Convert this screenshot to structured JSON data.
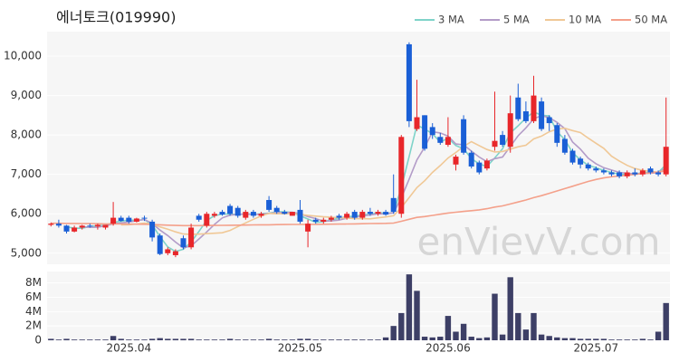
{
  "chart_data": [
    {
      "type": "candlestick",
      "title": "에너토크(019990)",
      "watermark": "enVievV.com",
      "up_color": "#e8262a",
      "down_color": "#1a5fd6",
      "grid": true,
      "legend": "upper right",
      "ylim": [
        4720,
        10620
      ],
      "yticks": [
        {
          "value": 5000,
          "label": "5,000"
        },
        {
          "value": 6000,
          "label": "6,000"
        },
        {
          "value": 7000,
          "label": "7,000"
        },
        {
          "value": 8000,
          "label": "8,000"
        },
        {
          "value": 9000,
          "label": "9,000"
        },
        {
          "value": 10000,
          "label": "10,000"
        }
      ],
      "open": [
        5720,
        5750,
        5700,
        5550,
        5650,
        5700,
        5680,
        5650,
        5750,
        5900,
        5900,
        5800,
        5900,
        5800,
        5450,
        5000,
        4950,
        5380,
        5150,
        5950,
        5700,
        5950,
        6050,
        6200,
        6150,
        5900,
        6050,
        5950,
        6350,
        6150,
        6050,
        5950,
        6100,
        5550,
        5850,
        5800,
        5850,
        5950,
        5900,
        6050,
        5900,
        6050,
        6000,
        6050,
        6400,
        6000,
        10300,
        8150,
        8500,
        8200,
        7950,
        7750,
        7250,
        8400,
        7550,
        7300,
        7150,
        7700,
        8000,
        7700,
        8950,
        8600,
        8350,
        8850,
        8450,
        8250,
        7900,
        7600,
        7400,
        7250,
        7150,
        7100,
        7050,
        7050,
        6950,
        7050,
        7000,
        7150,
        7050,
        7000
      ],
      "high": [
        5780,
        5850,
        5720,
        5700,
        5720,
        5750,
        5750,
        5720,
        6300,
        5950,
        5950,
        5900,
        5950,
        5850,
        5500,
        5150,
        5100,
        5450,
        5750,
        6000,
        6050,
        6050,
        6100,
        6250,
        6200,
        6100,
        6100,
        6050,
        6450,
        6200,
        6100,
        6050,
        6350,
        5850,
        5900,
        5900,
        5950,
        6000,
        6050,
        6100,
        6100,
        6150,
        6100,
        6100,
        7000,
        8000,
        10350,
        9400,
        8500,
        8300,
        8050,
        8450,
        7500,
        8500,
        7600,
        7350,
        7400,
        9100,
        8100,
        9000,
        9300,
        8850,
        9500,
        8950,
        8500,
        8300,
        8000,
        7650,
        7450,
        7300,
        7200,
        7150,
        7100,
        7100,
        7100,
        7150,
        7150,
        7200,
        7100,
        8950
      ],
      "low": [
        5680,
        5650,
        5500,
        5530,
        5600,
        5650,
        5600,
        5600,
        5700,
        5800,
        5750,
        5780,
        5820,
        5300,
        4950,
        4950,
        4900,
        5100,
        5100,
        5800,
        5650,
        5900,
        5950,
        5950,
        5900,
        5850,
        5900,
        5900,
        6050,
        6000,
        5980,
        5950,
        5750,
        5150,
        5750,
        5750,
        5800,
        5850,
        5850,
        5850,
        5850,
        5950,
        5950,
        5950,
        6000,
        5900,
        8200,
        8100,
        7600,
        7900,
        7750,
        7700,
        7100,
        7500,
        7150,
        7000,
        7100,
        7600,
        7700,
        7550,
        8350,
        8300,
        8300,
        8100,
        8100,
        7700,
        7500,
        7250,
        7150,
        7100,
        7050,
        7000,
        6950,
        6900,
        6900,
        6950,
        6950,
        7000,
        6950,
        6950
      ],
      "close": [
        5750,
        5700,
        5550,
        5650,
        5700,
        5680,
        5720,
        5720,
        5900,
        5820,
        5800,
        5880,
        5880,
        5400,
        4980,
        5100,
        5050,
        5150,
        5650,
        5850,
        6000,
        6000,
        5980,
        6000,
        5950,
        6050,
        5950,
        6000,
        6100,
        6050,
        6000,
        6050,
        5800,
        5750,
        5800,
        5850,
        5900,
        5900,
        6000,
        5900,
        6050,
        6000,
        6050,
        5980,
        6050,
        7950,
        8350,
        8450,
        7650,
        8000,
        7800,
        7950,
        7450,
        7550,
        7200,
        7050,
        7350,
        7850,
        7750,
        8550,
        8400,
        8350,
        9000,
        8150,
        8300,
        7800,
        7550,
        7300,
        7250,
        7150,
        7100,
        7050,
        7000,
        6950,
        7050,
        7000,
        7100,
        7050,
        7000,
        7700
      ],
      "series": [
        {
          "name": "3 MA",
          "color": "#7fd3c9",
          "values": [
            null,
            null,
            5667,
            5633,
            5633,
            5677,
            5700,
            5707,
            5780,
            5813,
            5840,
            5833,
            5853,
            5720,
            5420,
            5160,
            5043,
            5100,
            5283,
            5550,
            5833,
            5950,
            5993,
            5993,
            5977,
            6000,
            5983,
            6000,
            6017,
            6050,
            6050,
            6033,
            5950,
            5867,
            5783,
            5800,
            5850,
            5883,
            5933,
            5933,
            5983,
            5983,
            6033,
            6010,
            6027,
            6660,
            7450,
            8250,
            8150,
            8033,
            7817,
            7917,
            7733,
            7650,
            7400,
            7267,
            7200,
            7417,
            7650,
            8050,
            8233,
            8433,
            8583,
            8500,
            8483,
            8083,
            7883,
            7550,
            7367,
            7233,
            7167,
            7100,
            7050,
            7000,
            7000,
            7000,
            7050,
            7050,
            7050,
            7250
          ]
        },
        {
          "name": "5 MA",
          "color": "#b39cc8",
          "values": [
            null,
            null,
            null,
            null,
            5670,
            5656,
            5660,
            5694,
            5744,
            5768,
            5792,
            5824,
            5856,
            5756,
            5588,
            5448,
            5282,
            5136,
            5186,
            5360,
            5540,
            5730,
            5896,
            5966,
            5986,
            5996,
            5986,
            5990,
            6010,
            6030,
            6030,
            6040,
            6000,
            5930,
            5880,
            5810,
            5820,
            5840,
            5890,
            5910,
            5950,
            5970,
            6000,
            5996,
            6026,
            6406,
            6876,
            7366,
            7690,
            8080,
            8050,
            7970,
            7770,
            7750,
            7590,
            7440,
            7320,
            7400,
            7440,
            7710,
            7980,
            8180,
            8410,
            8490,
            8440,
            8320,
            8160,
            7820,
            7640,
            7410,
            7270,
            7170,
            7110,
            7050,
            7030,
            7010,
            7020,
            7030,
            7040,
            7170
          ]
        },
        {
          "name": "10 MA",
          "color": "#f0c896",
          "values": [
            null,
            null,
            null,
            null,
            null,
            null,
            null,
            null,
            null,
            5719,
            5724,
            5742,
            5765,
            5740,
            5668,
            5610,
            5543,
            5486,
            5481,
            5484,
            5496,
            5508,
            5518,
            5578,
            5675,
            5770,
            5860,
            5945,
            6010,
            6000,
            6000,
            6005,
            5987,
            5962,
            5942,
            5922,
            5912,
            5902,
            5892,
            5877,
            5877,
            5872,
            5897,
            5920,
            5950,
            6160,
            6410,
            6665,
            6840,
            7050,
            7225,
            7415,
            7555,
            7710,
            7830,
            7730,
            7630,
            7570,
            7580,
            7640,
            7700,
            7740,
            7900,
            7970,
            8080,
            8150,
            8170,
            8110,
            8060,
            7920,
            7790,
            7660,
            7460,
            7340,
            7230,
            7150,
            7100,
            7080,
            7050,
            7120
          ]
        },
        {
          "name": "50 MA",
          "color": "#f4a08a",
          "values": [
            5760,
            5760,
            5755,
            5755,
            5750,
            5750,
            5748,
            5745,
            5745,
            5742,
            5740,
            5738,
            5735,
            5730,
            5720,
            5712,
            5705,
            5700,
            5700,
            5700,
            5702,
            5705,
            5708,
            5710,
            5712,
            5715,
            5718,
            5720,
            5722,
            5725,
            5728,
            5730,
            5730,
            5730,
            5732,
            5735,
            5738,
            5740,
            5742,
            5745,
            5748,
            5752,
            5755,
            5758,
            5765,
            5810,
            5860,
            5910,
            5930,
            5960,
            5990,
            6020,
            6040,
            6060,
            6080,
            6100,
            6130,
            6170,
            6200,
            6250,
            6300,
            6350,
            6410,
            6460,
            6520,
            6580,
            6640,
            6700,
            6760,
            6820,
            6870,
            6910,
            6940,
            6960,
            6980,
            7000,
            7020,
            7040,
            7060,
            7090
          ]
        }
      ]
    },
    {
      "type": "bar",
      "color": "#3d3f66",
      "grid": true,
      "ylim": [
        0,
        9.6
      ],
      "yticks": [
        0,
        {
          "value": 2,
          "label": "2M"
        },
        {
          "value": 4,
          "label": "4M"
        },
        {
          "value": 6,
          "label": "6M"
        },
        {
          "value": 8,
          "label": "8M"
        }
      ],
      "categories": [
        null,
        null,
        null,
        null,
        null,
        null,
        null,
        null,
        null,
        null,
        "2025.04",
        null,
        null,
        null,
        null,
        null,
        null,
        null,
        null,
        null,
        null,
        null,
        null,
        null,
        null,
        null,
        null,
        null,
        null,
        null,
        null,
        null,
        "2025.05",
        null,
        null,
        null,
        null,
        null,
        null,
        null,
        null,
        null,
        null,
        null,
        null,
        null,
        null,
        null,
        null,
        null,
        null,
        "2025.06",
        null,
        null,
        null,
        null,
        null,
        null,
        null,
        null,
        null,
        null,
        null,
        null,
        null,
        null,
        null,
        null,
        null,
        null,
        "2025.07",
        null,
        null,
        null,
        null,
        null,
        null,
        null,
        null,
        null
      ],
      "values": [
        0.2,
        0.1,
        0.2,
        0.1,
        0.1,
        0.1,
        0.1,
        0.1,
        0.6,
        0.2,
        0.1,
        0.1,
        0.1,
        0.2,
        0.3,
        0.2,
        0.2,
        0.2,
        0.2,
        0.1,
        0.1,
        0.1,
        0.1,
        0.2,
        0.1,
        0.1,
        0.1,
        0.1,
        0.2,
        0.1,
        0.1,
        0.1,
        0.2,
        0.2,
        0.1,
        0.1,
        0.1,
        0.1,
        0.1,
        0.1,
        0.1,
        0.1,
        0.1,
        0.4,
        2.0,
        3.8,
        9.2,
        6.9,
        0.5,
        0.4,
        0.5,
        3.4,
        1.2,
        2.3,
        0.5,
        0.3,
        0.4,
        6.5,
        0.8,
        8.8,
        3.8,
        1.5,
        3.8,
        0.8,
        0.6,
        0.4,
        0.3,
        0.3,
        0.2,
        0.2,
        0.2,
        0.2,
        0.1,
        0.1,
        0.1,
        0.1,
        0.2,
        0.1,
        1.2,
        5.2
      ]
    }
  ]
}
